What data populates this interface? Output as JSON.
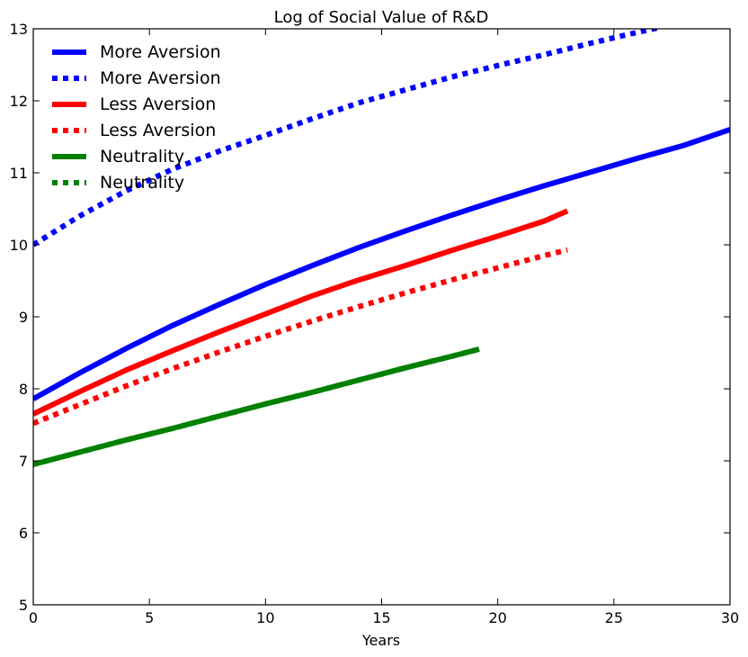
{
  "chart_data": {
    "type": "line",
    "title": "Log of Social Value of R&D",
    "xlabel": "Years",
    "ylabel": "",
    "xlim": [
      0,
      30
    ],
    "ylim": [
      5,
      13
    ],
    "xticks": [
      "0",
      "5",
      "10",
      "15",
      "20",
      "25",
      "30"
    ],
    "yticks": [
      "5",
      "6",
      "7",
      "8",
      "9",
      "10",
      "11",
      "12",
      "13"
    ],
    "grid": false,
    "legend_position": "top-left",
    "series": [
      {
        "name": "More Aversion",
        "style": "solid",
        "color": "#0000ff",
        "x": [
          0,
          2,
          4,
          6,
          8,
          10,
          12,
          14,
          16,
          18,
          20,
          22,
          24,
          26,
          28,
          30
        ],
        "y": [
          7.86,
          8.22,
          8.56,
          8.88,
          9.17,
          9.45,
          9.71,
          9.96,
          10.19,
          10.41,
          10.62,
          10.82,
          11.01,
          11.2,
          11.38,
          11.6
        ]
      },
      {
        "name": "More Aversion",
        "style": "dotted",
        "color": "#0000ff",
        "x": [
          0,
          2,
          4,
          6,
          8,
          10,
          12,
          14,
          16,
          18,
          20,
          22,
          24,
          26,
          27
        ],
        "y": [
          10.0,
          10.4,
          10.75,
          11.05,
          11.3,
          11.52,
          11.75,
          11.97,
          12.15,
          12.33,
          12.49,
          12.64,
          12.8,
          12.95,
          13.02
        ]
      },
      {
        "name": "Less Aversion",
        "style": "solid",
        "color": "#ff0000",
        "x": [
          0,
          2,
          4,
          6,
          8,
          10,
          12,
          14,
          16,
          18,
          20,
          22,
          23
        ],
        "y": [
          7.65,
          7.96,
          8.26,
          8.53,
          8.79,
          9.04,
          9.29,
          9.51,
          9.71,
          9.92,
          10.12,
          10.33,
          10.47
        ]
      },
      {
        "name": "Less Aversion",
        "style": "dotted",
        "color": "#ff0000",
        "x": [
          0,
          2,
          4,
          6,
          8,
          10,
          12,
          14,
          16,
          18,
          20,
          22,
          23
        ],
        "y": [
          7.52,
          7.78,
          8.04,
          8.28,
          8.51,
          8.73,
          8.94,
          9.14,
          9.33,
          9.51,
          9.68,
          9.85,
          9.93
        ]
      },
      {
        "name": "Neutrality",
        "style": "solid",
        "color": "#008000",
        "x": [
          0,
          2,
          4,
          6,
          8,
          10,
          12,
          14,
          16,
          18,
          19.2
        ],
        "y": [
          6.95,
          7.12,
          7.29,
          7.45,
          7.62,
          7.79,
          7.95,
          8.12,
          8.29,
          8.45,
          8.55
        ]
      },
      {
        "name": "Neutrality",
        "style": "dotted",
        "color": "#008000",
        "x": [
          0,
          2,
          4,
          6,
          8,
          10,
          12,
          14,
          16,
          18,
          19.2
        ],
        "y": [
          6.95,
          7.12,
          7.29,
          7.45,
          7.62,
          7.79,
          7.95,
          8.12,
          8.29,
          8.45,
          8.55
        ]
      }
    ]
  }
}
